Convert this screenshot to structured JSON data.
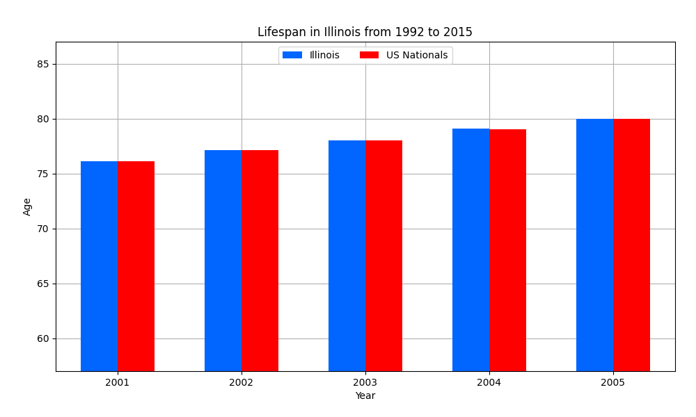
{
  "chart_data": {
    "type": "bar",
    "title": "Lifespan in Illinois from 1992 to 2015",
    "x_label": "Year",
    "y_label": "Age",
    "categories": [
      "2001",
      "2002",
      "2003",
      "2004",
      "2005"
    ],
    "series": [
      {
        "name": "Illinois",
        "color": "#0066ff",
        "values": [
          76.1,
          77.1,
          78.0,
          79.1,
          80.0
        ]
      },
      {
        "name": "US Nationals",
        "color": "#ff0000",
        "values": [
          76.1,
          77.1,
          78.0,
          79.0,
          80.0
        ]
      }
    ],
    "ylim": [
      57,
      87
    ],
    "yticks": [
      60,
      65,
      70,
      75,
      80,
      85
    ],
    "grid": true,
    "legend": "upper center"
  }
}
